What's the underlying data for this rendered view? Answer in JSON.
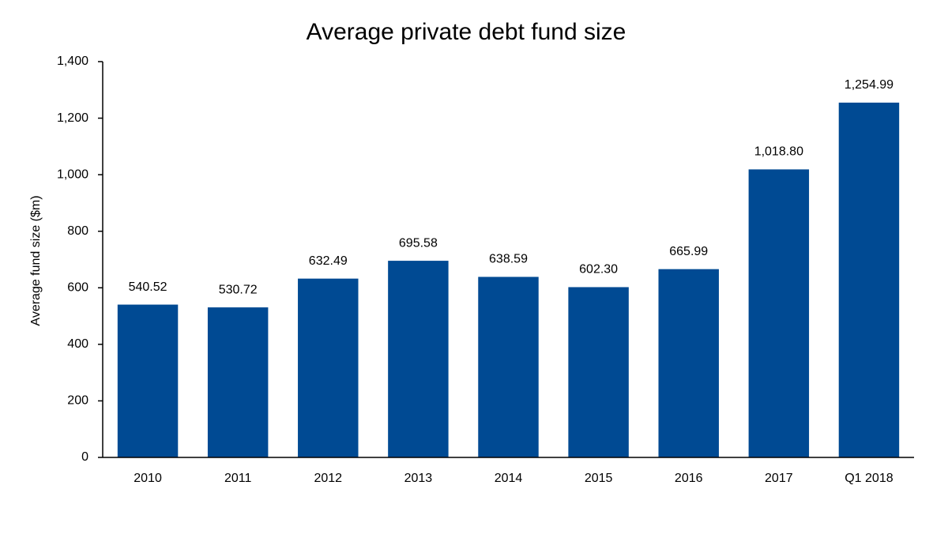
{
  "chart_data": {
    "type": "bar",
    "title": "Average private debt fund size",
    "y_label": "Average fund size ($m)",
    "categories": [
      "2010",
      "2011",
      "2012",
      "2013",
      "2014",
      "2015",
      "2016",
      "2017",
      "Q1 2018"
    ],
    "values": [
      540.52,
      530.72,
      632.49,
      695.58,
      638.59,
      602.3,
      665.99,
      1018.8,
      1254.99
    ],
    "value_labels": [
      "540.52",
      "530.72",
      "632.49",
      "695.58",
      "638.59",
      "602.30",
      "665.99",
      "1,018.80",
      "1,254.99"
    ],
    "color": "#004a93",
    "ylim": [
      0,
      1400
    ],
    "yticks": [
      0,
      200,
      400,
      600,
      800,
      {
        "value": 1000,
        "label": "1,000"
      },
      {
        "value": 1200,
        "label": "1,200"
      },
      {
        "value": 1400,
        "label": "1,400"
      }
    ],
    "grid": false
  }
}
